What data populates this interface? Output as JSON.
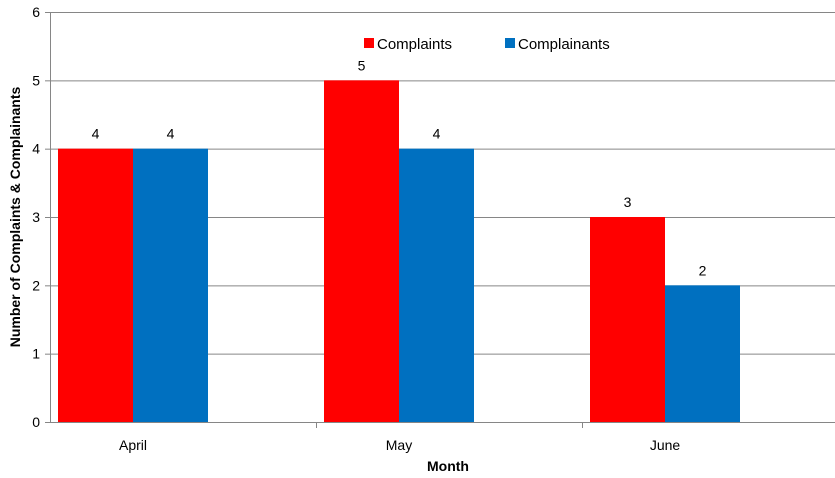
{
  "chart_data": {
    "type": "bar",
    "categories": [
      "April",
      "May",
      "June"
    ],
    "series": [
      {
        "name": "Complaints",
        "values": [
          4,
          5,
          3
        ],
        "color": "#ff0000"
      },
      {
        "name": "Complainants",
        "values": [
          4,
          4,
          2
        ],
        "color": "#0070c0"
      }
    ],
    "xlabel": "Month",
    "ylabel": "Number of Complaints & Complainants",
    "ylim": [
      0,
      6
    ],
    "yticks": [
      0,
      1,
      2,
      3,
      4,
      5,
      6
    ],
    "grid": true,
    "legend_position": "top-center",
    "gridline_color": "#868686"
  }
}
